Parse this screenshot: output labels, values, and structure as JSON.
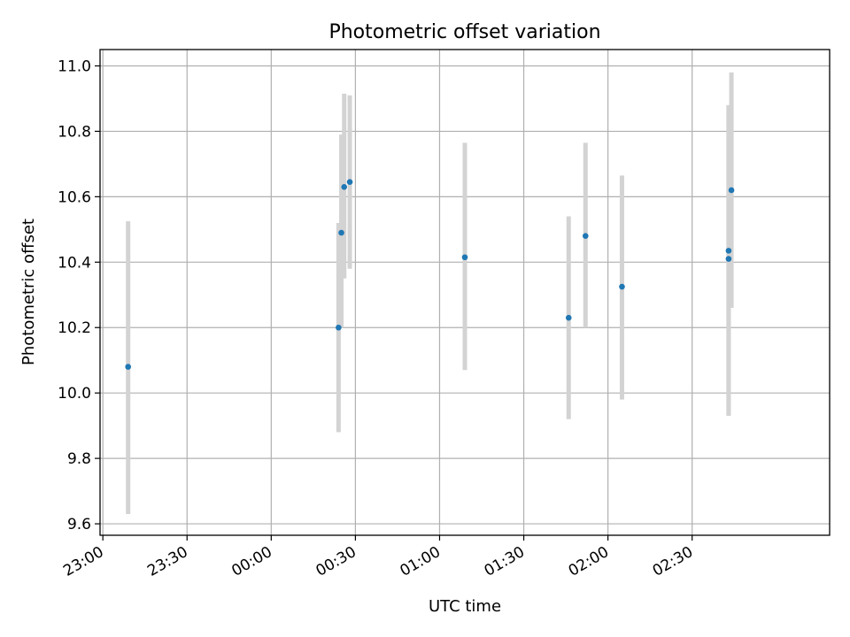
{
  "chart_data": {
    "type": "scatter",
    "title": "Photometric offset variation",
    "xlabel": "UTC time",
    "ylabel": "Photometric offset",
    "grid": true,
    "x_ticks": [
      "23:00",
      "23:30",
      "00:00",
      "00:30",
      "01:00",
      "01:30",
      "02:00",
      "02:30"
    ],
    "y_ticks": [
      "9.6",
      "9.8",
      "10.0",
      "10.2",
      "10.4",
      "10.6",
      "10.8",
      "11.0"
    ],
    "ylim": [
      9.565,
      11.05
    ],
    "x_axis_unit": "UTC clock time (HH:MM), 23:00 to past 02:30",
    "xlim": [
      "22:59",
      "03:19"
    ],
    "points": [
      {
        "x": "23:09",
        "y": 10.08,
        "yerr_low": 9.63,
        "yerr_high": 10.525
      },
      {
        "x": "00:24",
        "y": 10.2,
        "yerr_low": 9.88,
        "yerr_high": 10.52
      },
      {
        "x": "00:25",
        "y": 10.49,
        "yerr_low": 10.2,
        "yerr_high": 10.79
      },
      {
        "x": "00:26",
        "y": 10.63,
        "yerr_low": 10.35,
        "yerr_high": 10.915
      },
      {
        "x": "00:28",
        "y": 10.645,
        "yerr_low": 10.38,
        "yerr_high": 10.91
      },
      {
        "x": "01:09",
        "y": 10.415,
        "yerr_low": 10.07,
        "yerr_high": 10.765
      },
      {
        "x": "01:46",
        "y": 10.23,
        "yerr_low": 9.92,
        "yerr_high": 10.54
      },
      {
        "x": "01:52",
        "y": 10.48,
        "yerr_low": 10.2,
        "yerr_high": 10.765
      },
      {
        "x": "02:05",
        "y": 10.325,
        "yerr_low": 9.98,
        "yerr_high": 10.665
      },
      {
        "x": "02:43",
        "y": 10.41,
        "yerr_low": 9.93,
        "yerr_high": 10.88
      },
      {
        "x": "02:43",
        "y": 10.435,
        "yerr_low": 9.93,
        "yerr_high": 10.88
      },
      {
        "x": "02:44",
        "y": 10.62,
        "yerr_low": 10.26,
        "yerr_high": 10.98
      }
    ],
    "colors": {
      "marker": "#1f77b4",
      "errorbar": "#d3d3d3",
      "grid": "#b0b0b0"
    }
  }
}
